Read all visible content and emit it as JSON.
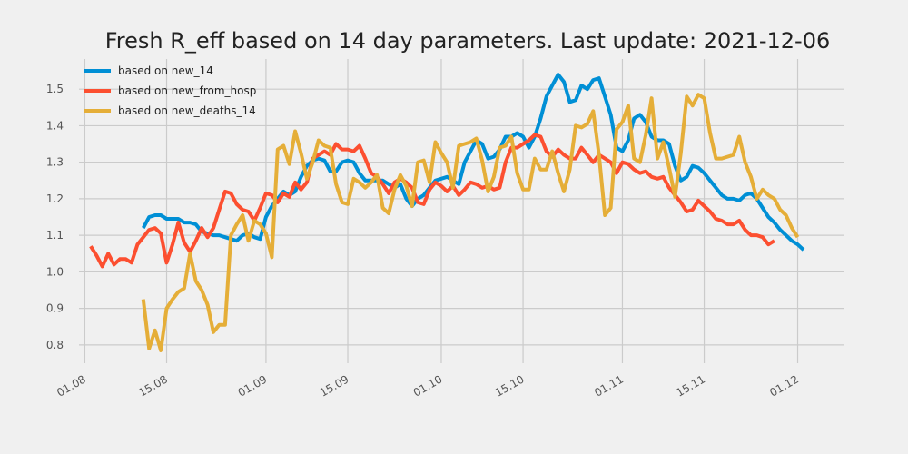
{
  "chart_data": {
    "type": "line",
    "title": "Fresh R_eff based on 14 day parameters. Last update: 2021-12-06",
    "xlabel": "",
    "ylabel": "",
    "xlim": [
      "2021-07-31",
      "2021-12-09"
    ],
    "ylim": [
      0.75,
      1.57
    ],
    "grid": true,
    "legend_position": "top-left",
    "x_ticks": [
      {
        "date": "2021-08-01",
        "label": "01.08"
      },
      {
        "date": "2021-08-15",
        "label": "15.08"
      },
      {
        "date": "2021-09-01",
        "label": "01.09"
      },
      {
        "date": "2021-09-15",
        "label": "15.09"
      },
      {
        "date": "2021-10-01",
        "label": "01.10"
      },
      {
        "date": "2021-10-15",
        "label": "15.10"
      },
      {
        "date": "2021-11-01",
        "label": "01.11"
      },
      {
        "date": "2021-11-15",
        "label": "15.11"
      },
      {
        "date": "2021-12-01",
        "label": "01.12"
      }
    ],
    "y_ticks": [
      {
        "value": 0.8,
        "label": "0.8"
      },
      {
        "value": 0.9,
        "label": "0.9"
      },
      {
        "value": 1.0,
        "label": "1.0"
      },
      {
        "value": 1.1,
        "label": "1.1"
      },
      {
        "value": 1.2,
        "label": "1.2"
      },
      {
        "value": 1.3,
        "label": "1.3"
      },
      {
        "value": 1.4,
        "label": "1.4"
      },
      {
        "value": 1.5,
        "label": "1.5"
      }
    ],
    "series": [
      {
        "name": "based on new_14",
        "color": "#008fd5",
        "start_date": "2021-08-11",
        "values": [
          1.12,
          1.15,
          1.155,
          1.155,
          1.145,
          1.145,
          1.145,
          1.135,
          1.135,
          1.13,
          1.11,
          1.105,
          1.1,
          1.1,
          1.095,
          1.09,
          1.085,
          1.1,
          1.105,
          1.095,
          1.09,
          1.15,
          1.18,
          1.2,
          1.22,
          1.21,
          1.22,
          1.26,
          1.29,
          1.305,
          1.31,
          1.305,
          1.275,
          1.275,
          1.3,
          1.305,
          1.3,
          1.27,
          1.25,
          1.25,
          1.25,
          1.25,
          1.24,
          1.23,
          1.24,
          1.2,
          1.18,
          1.2,
          1.21,
          1.23,
          1.25,
          1.255,
          1.26,
          1.25,
          1.24,
          1.3,
          1.33,
          1.36,
          1.35,
          1.31,
          1.315,
          1.335,
          1.37,
          1.37,
          1.38,
          1.37,
          1.34,
          1.37,
          1.42,
          1.48,
          1.51,
          1.54,
          1.52,
          1.465,
          1.47,
          1.51,
          1.5,
          1.525,
          1.53,
          1.48,
          1.43,
          1.34,
          1.33,
          1.36,
          1.42,
          1.43,
          1.41,
          1.37,
          1.36,
          1.36,
          1.35,
          1.29,
          1.25,
          1.26,
          1.29,
          1.285,
          1.27,
          1.25,
          1.23,
          1.21,
          1.2,
          1.2,
          1.195,
          1.21,
          1.215,
          1.2,
          1.175,
          1.15,
          1.135,
          1.115,
          1.1,
          1.085,
          1.075,
          1.06
        ]
      },
      {
        "name": "based on new_from_hosp",
        "color": "#fc4f30",
        "start_date": "2021-08-02",
        "values": [
          1.07,
          1.045,
          1.015,
          1.05,
          1.02,
          1.035,
          1.035,
          1.025,
          1.075,
          1.095,
          1.115,
          1.12,
          1.105,
          1.025,
          1.075,
          1.135,
          1.08,
          1.055,
          1.085,
          1.12,
          1.095,
          1.12,
          1.17,
          1.22,
          1.215,
          1.185,
          1.17,
          1.165,
          1.14,
          1.175,
          1.215,
          1.21,
          1.19,
          1.215,
          1.205,
          1.245,
          1.225,
          1.245,
          1.31,
          1.32,
          1.33,
          1.32,
          1.35,
          1.335,
          1.335,
          1.33,
          1.345,
          1.31,
          1.27,
          1.26,
          1.24,
          1.215,
          1.245,
          1.255,
          1.245,
          1.23,
          1.19,
          1.185,
          1.225,
          1.245,
          1.235,
          1.22,
          1.235,
          1.21,
          1.225,
          1.245,
          1.24,
          1.23,
          1.235,
          1.225,
          1.23,
          1.3,
          1.34,
          1.34,
          1.35,
          1.36,
          1.375,
          1.37,
          1.33,
          1.315,
          1.335,
          1.32,
          1.31,
          1.31,
          1.34,
          1.32,
          1.3,
          1.32,
          1.31,
          1.3,
          1.27,
          1.3,
          1.295,
          1.28,
          1.27,
          1.275,
          1.26,
          1.255,
          1.26,
          1.23,
          1.21,
          1.19,
          1.165,
          1.17,
          1.195,
          1.18,
          1.165,
          1.145,
          1.14,
          1.13,
          1.13,
          1.14,
          1.115,
          1.1,
          1.1,
          1.095,
          1.075,
          1.085
        ]
      },
      {
        "name": "based on new_deaths_14",
        "color": "#e5ae38",
        "start_date": "2021-08-11",
        "values": [
          0.925,
          0.79,
          0.84,
          0.785,
          0.9,
          0.925,
          0.945,
          0.955,
          1.05,
          0.975,
          0.95,
          0.91,
          0.835,
          0.855,
          0.855,
          1.1,
          1.13,
          1.155,
          1.085,
          1.14,
          1.13,
          1.105,
          1.04,
          1.335,
          1.345,
          1.295,
          1.385,
          1.325,
          1.255,
          1.3,
          1.36,
          1.345,
          1.34,
          1.24,
          1.19,
          1.185,
          1.255,
          1.245,
          1.23,
          1.245,
          1.265,
          1.175,
          1.16,
          1.225,
          1.265,
          1.235,
          1.18,
          1.3,
          1.305,
          1.245,
          1.355,
          1.325,
          1.3,
          1.23,
          1.345,
          1.35,
          1.355,
          1.365,
          1.305,
          1.22,
          1.26,
          1.34,
          1.345,
          1.37,
          1.27,
          1.225,
          1.225,
          1.31,
          1.28,
          1.28,
          1.33,
          1.27,
          1.22,
          1.28,
          1.4,
          1.395,
          1.405,
          1.44,
          1.32,
          1.155,
          1.175,
          1.39,
          1.41,
          1.455,
          1.31,
          1.3,
          1.375,
          1.475,
          1.31,
          1.355,
          1.285,
          1.205,
          1.325,
          1.48,
          1.455,
          1.485,
          1.475,
          1.38,
          1.31,
          1.31,
          1.315,
          1.32,
          1.37,
          1.3,
          1.26,
          1.2,
          1.225,
          1.21,
          1.2,
          1.17,
          1.155,
          1.12,
          1.095
        ]
      }
    ]
  }
}
